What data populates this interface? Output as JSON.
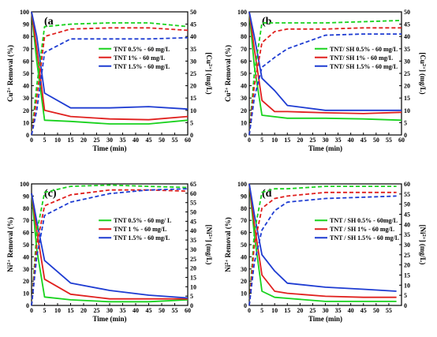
{
  "colors": {
    "TNT 0.5%": "#19d21e",
    "TNT 1%": "#e0201e",
    "TNT 1.5%": "#1e3cd2"
  },
  "chart_data": [
    {
      "type": "line",
      "panel": "(a",
      "xlabel": "Time (min)",
      "ylabel": "Cu2+ Removal (%)",
      "y2label": "[Cu2+] (mg/L)",
      "ylabel_parts": [
        "Cu",
        "2+",
        " Removal (%)"
      ],
      "y2label_parts": [
        "[Cu",
        "2+",
        "] (mg/L)"
      ],
      "xlim": [
        0,
        60
      ],
      "ylim": [
        0,
        100
      ],
      "y2lim": [
        0,
        50
      ],
      "xticks": [
        0,
        5,
        10,
        15,
        20,
        25,
        30,
        35,
        40,
        45,
        50,
        55,
        60
      ],
      "yticks": [
        0,
        10,
        20,
        30,
        40,
        50,
        60,
        70,
        80,
        90,
        100
      ],
      "y2ticks": [
        0,
        5,
        10,
        15,
        20,
        25,
        30,
        35,
        40,
        45,
        50
      ],
      "legend_position": "center-right",
      "series": [
        {
          "name": "TNT 0.5% - 60 mg/L",
          "color": "TNT 0.5%",
          "axis": "right",
          "style": "solid",
          "x": [
            0,
            2,
            5,
            15,
            30,
            45,
            60
          ],
          "y": [
            50,
            30,
            6,
            5.5,
            4.5,
            4.5,
            6
          ]
        },
        {
          "name": "TNT 1% - 60 mg/L",
          "color": "TNT 1%",
          "axis": "right",
          "style": "solid",
          "x": [
            0,
            2,
            5,
            15,
            30,
            45,
            60
          ],
          "y": [
            50,
            35,
            10,
            7.5,
            6.5,
            6.2,
            7.5
          ]
        },
        {
          "name": "TNT 1.5% - 60 mg/L",
          "color": "TNT 1.5%",
          "axis": "right",
          "style": "solid",
          "x": [
            0,
            2,
            5,
            15,
            30,
            45,
            60
          ],
          "y": [
            50,
            40,
            17,
            11,
            11,
            11.5,
            10.5
          ]
        },
        {
          "color": "TNT 0.5%",
          "axis": "left",
          "style": "dashed",
          "x": [
            0,
            2,
            5,
            15,
            30,
            45,
            60
          ],
          "y": [
            0,
            40,
            88,
            90,
            91,
            91,
            88
          ]
        },
        {
          "color": "TNT 1%",
          "axis": "left",
          "style": "dashed",
          "x": [
            0,
            2,
            5,
            15,
            30,
            45,
            60
          ],
          "y": [
            0,
            30,
            80,
            86,
            87,
            87,
            85
          ]
        },
        {
          "color": "TNT 1.5%",
          "axis": "left",
          "style": "dashed",
          "x": [
            0,
            2,
            5,
            15,
            30,
            45,
            60
          ],
          "y": [
            0,
            20,
            67,
            78,
            78,
            78,
            79
          ]
        }
      ]
    },
    {
      "type": "line",
      "panel": "(b",
      "xlabel": "Time (min)",
      "ylabel": "Cu2+ Removal (%)",
      "y2label": "[Cu2+] (mg/L)",
      "ylabel_parts": [
        "Cu",
        "2+",
        " Removal (%)"
      ],
      "y2label_parts": [
        "[Cu",
        "2+",
        "] (mg/L)"
      ],
      "xlim": [
        0,
        60
      ],
      "ylim": [
        0,
        100
      ],
      "y2lim": [
        0,
        50
      ],
      "xticks": [
        0,
        5,
        10,
        15,
        20,
        25,
        30,
        35,
        40,
        45,
        50,
        55,
        60
      ],
      "yticks": [
        0,
        10,
        20,
        30,
        40,
        50,
        60,
        70,
        80,
        90,
        100
      ],
      "y2ticks": [
        0,
        5,
        10,
        15,
        20,
        25,
        30,
        35,
        40,
        45,
        50
      ],
      "legend_position": "center-right",
      "series": [
        {
          "name": "TNT/ SH 0.5% - 60 mg/L",
          "color": "TNT 0.5%",
          "axis": "right",
          "style": "solid",
          "x": [
            0,
            2,
            5,
            15,
            30,
            45,
            60
          ],
          "y": [
            50,
            28,
            8,
            6.8,
            6.8,
            6.5,
            6
          ]
        },
        {
          "name": "TNT/ SH 1% - 60 mg/L",
          "color": "TNT 1%",
          "axis": "right",
          "style": "solid",
          "x": [
            0,
            2,
            5,
            10,
            15,
            30,
            45,
            60
          ],
          "y": [
            50,
            35,
            14,
            9.5,
            9.5,
            9,
            8.7,
            9.2
          ]
        },
        {
          "name": "TNT/ SH 1.5% - 60 mg/L",
          "color": "TNT 1.5%",
          "axis": "right",
          "style": "solid",
          "x": [
            0,
            2,
            5,
            10,
            15,
            30,
            45,
            60
          ],
          "y": [
            50,
            40,
            23,
            18,
            12,
            10,
            10,
            10
          ]
        },
        {
          "color": "TNT 0.5%",
          "axis": "left",
          "style": "dashed",
          "x": [
            0,
            2,
            5,
            15,
            30,
            45,
            60
          ],
          "y": [
            0,
            50,
            91,
            91,
            91,
            92,
            93
          ]
        },
        {
          "color": "TNT 1%",
          "axis": "left",
          "style": "dashed",
          "x": [
            0,
            2,
            5,
            10,
            15,
            30,
            45,
            60
          ],
          "y": [
            0,
            40,
            75,
            84,
            86,
            86,
            87,
            87
          ]
        },
        {
          "color": "TNT 1.5%",
          "axis": "left",
          "style": "dashed",
          "x": [
            0,
            2,
            5,
            10,
            15,
            30,
            45,
            60
          ],
          "y": [
            0,
            30,
            55,
            63,
            70,
            81,
            82,
            82
          ]
        }
      ]
    },
    {
      "type": "line",
      "panel": "(c)",
      "xlabel": "Time (min)",
      "ylabel": "Ni2+ Removal (%)",
      "y2label": "[Ni2+] (mg/L)",
      "ylabel_parts": [
        "Ni",
        "2+",
        " Removal (%)"
      ],
      "y2label_parts": [
        "[Ni",
        "2+",
        "] (mg/L)"
      ],
      "xlim": [
        0,
        60
      ],
      "ylim": [
        0,
        100
      ],
      "y2lim": [
        0,
        65
      ],
      "xticks": [
        0,
        5,
        10,
        15,
        20,
        25,
        30,
        35,
        40,
        45,
        50,
        55,
        60
      ],
      "yticks": [
        0,
        10,
        20,
        30,
        40,
        50,
        60,
        70,
        80,
        90,
        100
      ],
      "y2ticks": [
        0,
        5,
        10,
        15,
        20,
        25,
        30,
        35,
        40,
        45,
        50,
        55,
        60,
        65
      ],
      "legend_position": "center-right",
      "series": [
        {
          "name": "TNT 0.5% - 60 mg/ L",
          "color": "TNT 0.5%",
          "axis": "right",
          "style": "solid",
          "x": [
            0,
            2,
            5,
            15,
            30,
            45,
            60
          ],
          "y": [
            60,
            30,
            4.5,
            3,
            2,
            2,
            3
          ]
        },
        {
          "name": "TNT 1 % - 60 mg/L",
          "color": "TNT 1%",
          "axis": "right",
          "style": "solid",
          "x": [
            0,
            2,
            5,
            15,
            30,
            45,
            60
          ],
          "y": [
            60,
            40,
            14,
            6,
            3.5,
            3.5,
            3.5
          ]
        },
        {
          "name": "TNT 1.5% - 60 mg/L",
          "color": "TNT 1.5%",
          "axis": "right",
          "style": "solid",
          "x": [
            0,
            2,
            5,
            15,
            30,
            45,
            60
          ],
          "y": [
            60,
            45,
            24,
            12,
            8,
            5.5,
            4
          ]
        },
        {
          "color": "TNT 0.5%",
          "axis": "left",
          "style": "dashed",
          "x": [
            0,
            2,
            5,
            15,
            30,
            45,
            60
          ],
          "y": [
            0,
            60,
            93,
            98,
            99,
            98,
            97
          ]
        },
        {
          "color": "TNT 1%",
          "axis": "left",
          "style": "dashed",
          "x": [
            0,
            2,
            5,
            15,
            30,
            45,
            60
          ],
          "y": [
            0,
            50,
            82,
            91,
            95,
            95,
            94
          ]
        },
        {
          "color": "TNT 1.5%",
          "axis": "left",
          "style": "dashed",
          "x": [
            0,
            2,
            5,
            15,
            30,
            45,
            60
          ],
          "y": [
            0,
            40,
            74,
            85,
            92,
            95,
            96
          ]
        }
      ]
    },
    {
      "type": "line",
      "panel": "(d",
      "xlabel": "Time (min)",
      "ylabel": "Ni2+ Removal (%)",
      "y2label": "[Ni2+] (mg/L)",
      "ylabel_parts": [
        "Ni",
        "2+",
        " Removal (%)"
      ],
      "y2label_parts": [
        "[Ni",
        "2+",
        "] (mg/L)"
      ],
      "xlim": [
        0,
        60
      ],
      "ylim": [
        0,
        100
      ],
      "y2lim": [
        0,
        60
      ],
      "xticks": [
        0,
        5,
        10,
        15,
        20,
        25,
        30,
        35,
        40,
        45,
        50,
        55
      ],
      "yticks": [
        0,
        10,
        20,
        30,
        40,
        50,
        60,
        70,
        80,
        90,
        100
      ],
      "y2ticks": [
        0,
        5,
        10,
        15,
        20,
        25,
        30,
        35,
        40,
        45,
        50,
        55,
        60
      ],
      "legend_position": "center-right",
      "series": [
        {
          "name": "TNT / SH 0.5% - 60mg/L",
          "color": "TNT 0.5%",
          "axis": "right",
          "style": "solid",
          "x": [
            0,
            2,
            5,
            10,
            15,
            30,
            45,
            58
          ],
          "y": [
            60,
            35,
            7,
            4,
            3.5,
            2,
            2,
            2
          ]
        },
        {
          "name": "TNT / SH 1% - 60 mg/L",
          "color": "TNT 1%",
          "axis": "right",
          "style": "solid",
          "x": [
            0,
            2,
            5,
            10,
            15,
            30,
            45,
            58
          ],
          "y": [
            60,
            40,
            15,
            7,
            6,
            4.5,
            4,
            4
          ]
        },
        {
          "name": "TNT / SH 1.5% - 60 mg/L",
          "color": "TNT 1.5%",
          "axis": "right",
          "style": "solid",
          "x": [
            0,
            2,
            5,
            10,
            15,
            30,
            45,
            58
          ],
          "y": [
            60,
            45,
            25,
            17,
            11,
            9,
            8,
            7
          ]
        },
        {
          "color": "TNT 0.5%",
          "axis": "left",
          "style": "dashed",
          "x": [
            0,
            2,
            5,
            10,
            15,
            30,
            45,
            58
          ],
          "y": [
            0,
            60,
            93,
            96,
            96,
            98,
            98,
            98
          ]
        },
        {
          "color": "TNT 1%",
          "axis": "left",
          "style": "dashed",
          "x": [
            0,
            2,
            5,
            10,
            15,
            30,
            45,
            58
          ],
          "y": [
            0,
            50,
            80,
            88,
            90,
            93,
            93,
            93
          ]
        },
        {
          "color": "TNT 1.5%",
          "axis": "left",
          "style": "dashed",
          "x": [
            0,
            2,
            5,
            10,
            15,
            30,
            45,
            58
          ],
          "y": [
            0,
            35,
            62,
            78,
            85,
            88,
            89,
            90
          ]
        }
      ]
    }
  ]
}
